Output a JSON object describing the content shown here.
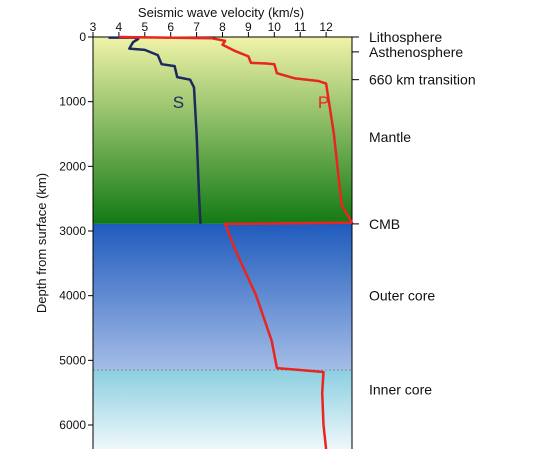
{
  "chart_data": {
    "type": "line",
    "title": "Seismic wave velocity (km/s)",
    "ylabel": "Depth from surface (km)",
    "xlim": [
      3,
      13
    ],
    "ylim": [
      0,
      6371
    ],
    "x_ticks": [
      3,
      4,
      5,
      6,
      7,
      8,
      9,
      10,
      11,
      12
    ],
    "y_ticks": [
      0,
      1000,
      2000,
      3000,
      4000,
      5000,
      6000
    ],
    "layers": [
      {
        "name": "Lithosphere",
        "label_depth": 0,
        "top": 0,
        "bottom": 100,
        "tick_depth": 0
      },
      {
        "name": "Asthenosphere",
        "label_depth": 230,
        "top": 100,
        "bottom": 410,
        "tick_depth": 230
      },
      {
        "name": "660 km transition",
        "label_depth": 660,
        "top": 410,
        "bottom": 700,
        "tick_depth": 660
      },
      {
        "name": "Mantle",
        "label_depth": 1550,
        "top": 700,
        "bottom": 2890,
        "tick_depth": null
      },
      {
        "name": "CMB",
        "label_depth": 2890,
        "top": 2890,
        "bottom": 2890,
        "tick_depth": 2890
      },
      {
        "name": "Outer core",
        "label_depth": 4000,
        "top": 2890,
        "bottom": 5150,
        "tick_depth": null
      },
      {
        "name": "Inner core",
        "label_depth": 5450,
        "top": 5150,
        "bottom": 6371,
        "tick_depth": null
      }
    ],
    "series": [
      {
        "name": "S",
        "color": "#1c2a5e",
        "label_at": {
          "x": 6.3,
          "depth": 1100
        },
        "points": [
          [
            3.6,
            10
          ],
          [
            4.6,
            10
          ],
          [
            4.75,
            30
          ],
          [
            4.55,
            80
          ],
          [
            4.4,
            180
          ],
          [
            5.0,
            200
          ],
          [
            5.5,
            280
          ],
          [
            5.65,
            420
          ],
          [
            6.15,
            450
          ],
          [
            6.25,
            620
          ],
          [
            6.75,
            660
          ],
          [
            6.9,
            780
          ],
          [
            7.0,
            1500
          ],
          [
            7.1,
            2500
          ],
          [
            7.15,
            2890
          ]
        ]
      },
      {
        "name": "P",
        "color": "#e8251f",
        "label_at": {
          "x": 11.9,
          "depth": 1100
        },
        "points": [
          [
            4.0,
            0
          ],
          [
            7.6,
            20
          ],
          [
            8.1,
            60
          ],
          [
            8.0,
            120
          ],
          [
            8.5,
            220
          ],
          [
            9.0,
            300
          ],
          [
            9.1,
            400
          ],
          [
            9.7,
            410
          ],
          [
            10.0,
            420
          ],
          [
            10.1,
            560
          ],
          [
            10.8,
            640
          ],
          [
            11.7,
            680
          ],
          [
            12.0,
            720
          ],
          [
            12.3,
            1500
          ],
          [
            12.6,
            2600
          ],
          [
            13.0,
            2870
          ],
          [
            8.1,
            2890
          ],
          [
            8.5,
            3300
          ],
          [
            9.3,
            4000
          ],
          [
            9.9,
            4700
          ],
          [
            10.1,
            5120
          ],
          [
            11.0,
            5150
          ],
          [
            11.9,
            5180
          ],
          [
            11.85,
            5500
          ],
          [
            11.9,
            6000
          ],
          [
            12.0,
            6371
          ]
        ]
      }
    ],
    "colors": {
      "mantle_top": "#f0f3a8",
      "mantle_bottom": "#127a14",
      "outer_core_top": "#1f5bbd",
      "outer_core_bottom": "#a5bde6",
      "inner_core_top": "#8ccfe0",
      "inner_core_bottom": "#eef7fb"
    }
  }
}
